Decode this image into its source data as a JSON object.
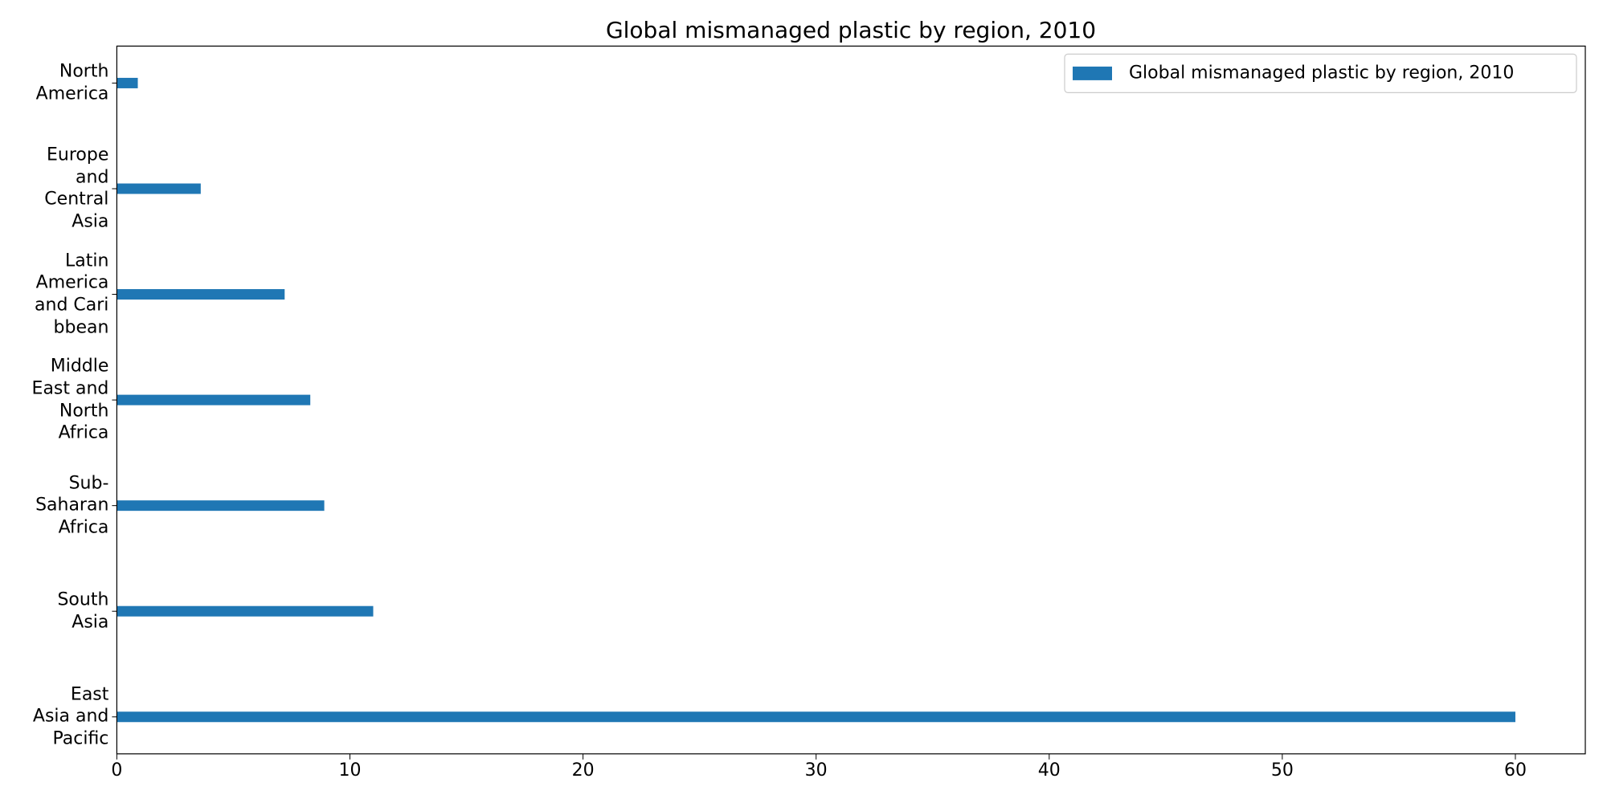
{
  "chart_data": {
    "type": "barh",
    "title": "Global mismanaged plastic by region, 2010",
    "categories": [
      "East\nAsia and\nPacific",
      "South\nAsia",
      "Sub-\nSaharan\nAfrica",
      "Middle\nEast and\nNorth\nAfrica",
      "Latin\nAmerica\nand Cari\nbbean",
      "Europe\nand\nCentral\nAsia",
      "North\nAmerica"
    ],
    "series": [
      {
        "name": "Global mismanaged plastic by region, 2010",
        "color": "#1f77b4",
        "values": [
          60.0,
          11.0,
          8.9,
          8.3,
          7.2,
          3.6,
          0.9
        ]
      }
    ],
    "xlim": [
      0,
      63
    ],
    "xticks": [
      0,
      10,
      20,
      30,
      40,
      50,
      60
    ],
    "legend": "upper right"
  }
}
